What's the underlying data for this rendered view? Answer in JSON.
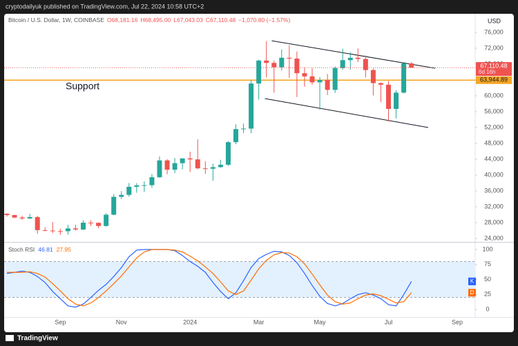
{
  "header": {
    "publisher": "cryptodailyuk published on TradingView.com, Jul 22, 2024 10:58 UTC+2",
    "brand": "TradingView"
  },
  "chart_data": [
    {
      "type": "candlestick",
      "title": "Bitcoin / U.S. Dollar, 1W, COINBASE",
      "ohlc_labels": [
        "O68,181.16",
        "H68,495.00",
        "L67,043.03",
        "C67,110.48"
      ],
      "change_label": "−1,070.80 (−1.57%)",
      "currency": "USD",
      "last_price_label": "67,110.48",
      "countdown": "6d 16h",
      "up_color": "#26a69a",
      "down_color": "#ef5350",
      "grid": false,
      "support": {
        "value": 63944.89,
        "label": "63,944.89",
        "text": "Support",
        "color": "#f5a623"
      },
      "trendlines": [
        {
          "start": [
            34.7,
            73900
          ],
          "end": [
            56.1,
            66950
          ]
        },
        {
          "start": [
            33.8,
            59300
          ],
          "end": [
            55.2,
            52000
          ]
        }
      ],
      "categories": [
        null,
        null,
        null,
        null,
        null,
        null,
        null,
        "Sep",
        null,
        null,
        null,
        null,
        null,
        null,
        null,
        "Nov",
        null,
        null,
        null,
        null,
        null,
        null,
        null,
        null,
        "2024",
        null,
        null,
        null,
        null,
        null,
        null,
        null,
        null,
        "Mar",
        null,
        null,
        null,
        null,
        null,
        null,
        null,
        "May",
        null,
        null,
        null,
        null,
        null,
        null,
        null,
        null,
        "Jul",
        null,
        null,
        null,
        null,
        null,
        null,
        null,
        null,
        "Sep",
        null,
        null
      ],
      "open": [
        30250,
        29900,
        29280,
        29050,
        29400,
        26100,
        26000,
        25850,
        25830,
        26530,
        26250,
        27980,
        27950,
        27150,
        29990,
        34500,
        35000,
        37050,
        37400,
        37450,
        39450,
        43700,
        41350,
        43000,
        44200,
        43950,
        41700,
        41600,
        42000,
        42600,
        48300,
        51600,
        51730,
        63100,
        68900,
        68300,
        67200,
        69600,
        69400,
        65700,
        64900,
        63400,
        64000,
        61500,
        67000,
        69000,
        69600,
        69300,
        66500,
        63200,
        62800,
        56700,
        60800,
        68181.16,
        null,
        null,
        null,
        null,
        null,
        null,
        null,
        null
      ],
      "high": [
        30350,
        30050,
        29750,
        30200,
        29700,
        26800,
        28150,
        26450,
        27450,
        27450,
        28600,
        28600,
        28000,
        30350,
        35200,
        35950,
        38000,
        37950,
        38400,
        40250,
        44700,
        44000,
        44300,
        44000,
        45900,
        49000,
        43500,
        42850,
        43850,
        48550,
        52800,
        53000,
        63900,
        69100,
        73800,
        68900,
        71700,
        72750,
        71200,
        67200,
        67000,
        64700,
        65500,
        67400,
        71900,
        71000,
        71950,
        70200,
        66900,
        63400,
        63750,
        61400,
        68500,
        68495,
        null,
        null,
        null,
        null,
        null,
        null,
        null,
        null
      ],
      "low": [
        29500,
        29100,
        28700,
        28900,
        25200,
        25800,
        25350,
        24900,
        24950,
        26000,
        26150,
        27150,
        26600,
        26950,
        29850,
        33950,
        34550,
        35550,
        35700,
        36800,
        39300,
        40200,
        40500,
        41450,
        40750,
        41500,
        40300,
        38550,
        41850,
        42300,
        47800,
        50600,
        50550,
        59050,
        64600,
        60800,
        66400,
        64500,
        59700,
        62300,
        62800,
        56500,
        60200,
        60750,
        66600,
        66600,
        68500,
        64600,
        60100,
        58400,
        53500,
        54300,
        60600,
        67043.03,
        null,
        null,
        null,
        null,
        null,
        null,
        null,
        null
      ],
      "close": [
        29900,
        29280,
        29050,
        29400,
        26100,
        26000,
        25850,
        25830,
        26530,
        26250,
        27980,
        27950,
        27150,
        29990,
        34500,
        35000,
        37050,
        37400,
        37450,
        39450,
        43700,
        41350,
        43000,
        44200,
        43950,
        41700,
        41600,
        42000,
        42600,
        48300,
        51600,
        51730,
        63100,
        68900,
        68300,
        67200,
        69600,
        69400,
        65700,
        64900,
        63400,
        64000,
        61500,
        67000,
        69000,
        69600,
        69300,
        66500,
        63200,
        62800,
        56700,
        60800,
        68181.16,
        67110.48,
        null,
        null,
        null,
        null,
        null,
        null,
        null,
        null
      ],
      "ylim": [
        23300,
        80350
      ],
      "yticks": [
        {
          "value": 24000,
          "label": "24,000"
        },
        {
          "value": 28000,
          "label": "28,000"
        },
        {
          "value": 32000,
          "label": "32,000"
        },
        {
          "value": 36000,
          "label": "36,000"
        },
        {
          "value": 40000,
          "label": "40,000"
        },
        {
          "value": 44000,
          "label": "44,000"
        },
        {
          "value": 48000,
          "label": "48,000"
        },
        {
          "value": 52000,
          "label": "52,000"
        },
        {
          "value": 56000,
          "label": "56,000"
        },
        {
          "value": 60000,
          "label": "60,000"
        },
        {
          "value": 64000,
          "label": "64,000"
        },
        {
          "value": 68000,
          "label": "68,000"
        },
        {
          "value": 72000,
          "label": "72,000"
        },
        {
          "value": 76000,
          "label": "76,000"
        }
      ]
    },
    {
      "type": "line",
      "title": "Stoch RSI",
      "bands": [
        20,
        80
      ],
      "band_color": "#e3f0fd",
      "series": [
        {
          "name": "K",
          "color": "#2962ff",
          "values": [
            60,
            62,
            64,
            62,
            55,
            45,
            30,
            18,
            6,
            4,
            9,
            20,
            32,
            42,
            55,
            70,
            88,
            99,
            100,
            100,
            100,
            100,
            98,
            90,
            80,
            72,
            62,
            45,
            30,
            18,
            28,
            48,
            70,
            85,
            92,
            97,
            96,
            90,
            78,
            60,
            40,
            22,
            10,
            6,
            10,
            18,
            25,
            28,
            24,
            18,
            8,
            6,
            25,
            46.81,
            null,
            null,
            null,
            null,
            null,
            null,
            null,
            null
          ]
        },
        {
          "name": "D",
          "color": "#ff6d00",
          "values": [
            62,
            62,
            62,
            63,
            60,
            54,
            43,
            31,
            18,
            9,
            6,
            11,
            20,
            31,
            43,
            56,
            71,
            86,
            96,
            100,
            100,
            100,
            99,
            96,
            89,
            81,
            71,
            60,
            46,
            31,
            25,
            31,
            49,
            68,
            82,
            91,
            95,
            94,
            88,
            76,
            59,
            41,
            24,
            13,
            9,
            11,
            18,
            24,
            26,
            23,
            17,
            11,
            13,
            27.95,
            null,
            null,
            null,
            null,
            null,
            null,
            null,
            null
          ]
        }
      ],
      "ylim": [
        -12.6,
        111.5
      ],
      "yticks": [
        0,
        25,
        50,
        75,
        100
      ]
    }
  ]
}
